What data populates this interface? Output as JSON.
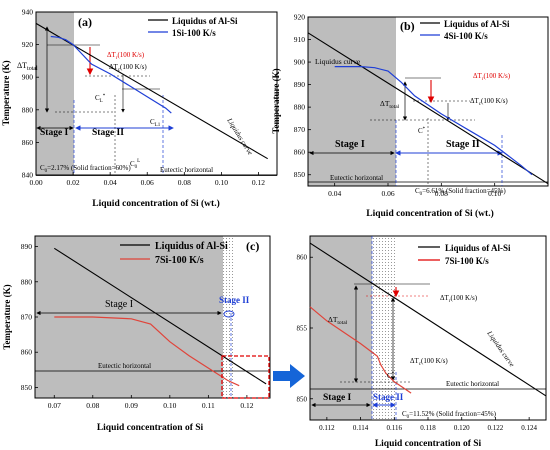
{
  "chart_data": [
    {
      "panel": "(a)",
      "type": "line",
      "xlabel": "Liquid concentration of Si (wt.)",
      "ylabel": "Temperature (K)",
      "xlim": [
        0.0,
        0.13
      ],
      "ylim": [
        840,
        940
      ],
      "xticks": [
        0.0,
        0.02,
        0.04,
        0.06,
        0.08,
        0.1,
        0.12
      ],
      "xtick_labels": [
        "0.00",
        "0.02",
        "0.04",
        "0.06",
        "0.08",
        "0.10",
        "0.12"
      ],
      "yticks": [
        840,
        860,
        880,
        900,
        920,
        940
      ],
      "grid": false,
      "legend_position": "top-right",
      "series": [
        {
          "name": "Liquidus of Al-Si",
          "color": "#000000",
          "x": [
            0.0,
            0.125
          ],
          "y": [
            933,
            850
          ]
        },
        {
          "name": "1Si-100 K/s",
          "color": "#1f3fd6",
          "x": [
            0.008,
            0.012,
            0.016,
            0.02,
            0.025,
            0.03,
            0.04,
            0.05,
            0.06,
            0.07,
            0.073
          ],
          "y": [
            925,
            924.5,
            923,
            920,
            914,
            908,
            902,
            895,
            888,
            881,
            878
          ]
        }
      ],
      "stage_boundary_x": 0.021,
      "eutectic_temperature": 850,
      "annotations": [
        "(a)",
        "ΔT",
        "total",
        "ΔT",
        "r",
        "(100 K/s)",
        "ΔT",
        "c",
        "(100 K/s)",
        "C",
        "L",
        "*",
        "C",
        "L1",
        "C",
        "0",
        "L",
        "Stage I",
        "Stage II",
        "C",
        "0",
        "=2.17% (Solid fraction=60%)",
        "Liquidus curve",
        "Eutectic horizontal"
      ]
    },
    {
      "panel": "(b)",
      "type": "line",
      "xlabel": "Liquid concentration of Si (wt.)",
      "ylabel": "Temperature (K)",
      "xlim": [
        0.03,
        0.12
      ],
      "ylim": [
        845,
        920
      ],
      "xticks": [
        0.04,
        0.06,
        0.08,
        0.1
      ],
      "xtick_labels": [
        "0.04",
        "0.06",
        "0.08",
        "0.10"
      ],
      "yticks": [
        850,
        860,
        870,
        880,
        890,
        900,
        910,
        920
      ],
      "grid": false,
      "legend_position": "top-right",
      "series": [
        {
          "name": "Liquidus of Al-Si",
          "color": "#000000",
          "x": [
            0.03,
            0.12
          ],
          "y": [
            913,
            846
          ]
        },
        {
          "name": "4Si-100 K/s",
          "color": "#1f3fd6",
          "x": [
            0.04,
            0.05,
            0.055,
            0.06,
            0.065,
            0.07,
            0.08,
            0.09,
            0.1,
            0.11,
            0.114
          ],
          "y": [
            898,
            898,
            897.5,
            896,
            891,
            885,
            877,
            870,
            863,
            854,
            850
          ]
        }
      ],
      "stage_boundary_x": 0.066,
      "eutectic_temperature": 849,
      "annotations": [
        "(b)",
        "Liquidus curve",
        "ΔT",
        "r",
        "(100 K/s)",
        "ΔT",
        "total",
        "ΔT",
        "c",
        "(100 K/s)",
        "C",
        "*",
        "Stage I",
        "Stage II",
        "Eutectic horizontal",
        "C",
        "0",
        "=6.61% (Solid fraction=45%)"
      ]
    },
    {
      "panel": "(c)",
      "type": "line",
      "xlabel": "Liquid concentration of Si",
      "ylabel": "Temperature (K)",
      "xlim": [
        0.065,
        0.126
      ],
      "ylim": [
        847,
        893
      ],
      "xticks": [
        0.07,
        0.08,
        0.09,
        0.1,
        0.11,
        0.12
      ],
      "xtick_labels": [
        "0.07",
        "0.08",
        "0.09",
        "0.10",
        "0.11",
        "0.12"
      ],
      "yticks": [
        850,
        860,
        870,
        880,
        890
      ],
      "grid": false,
      "legend_position": "top-right",
      "series": [
        {
          "name": "Liquidus of Al-Si",
          "color": "#000000",
          "x": [
            0.07,
            0.125
          ],
          "y": [
            889.5,
            851
          ]
        },
        {
          "name": "7Si-100 K/s",
          "color": "#e0443a",
          "x": [
            0.07,
            0.08,
            0.09,
            0.095,
            0.1,
            0.105,
            0.11,
            0.115,
            0.118
          ],
          "y": [
            870,
            870,
            869.5,
            868,
            863,
            859,
            855.5,
            852,
            850.5
          ]
        }
      ],
      "stage_boundary_x": 0.116,
      "eutectic_temperature": 850,
      "annotations": [
        "(c)",
        "Stage I",
        "Stage II",
        "Eutectic horizontal"
      ]
    },
    {
      "panel": "inset",
      "type": "line",
      "xlabel": "Liquid concentration of Si",
      "ylabel": "",
      "xlim": [
        0.111,
        0.125
      ],
      "ylim": [
        848.5,
        861.5
      ],
      "xticks": [
        0.112,
        0.114,
        0.116,
        0.118,
        0.12,
        0.122,
        0.124
      ],
      "xtick_labels": [
        "0.112",
        "0.114",
        "0.116",
        "0.118",
        "0.120",
        "0.122",
        "0.124"
      ],
      "yticks": [
        850,
        855,
        860
      ],
      "grid": false,
      "legend_position": "top-right",
      "series": [
        {
          "name": "Liquidus of Al-Si",
          "color": "#000000",
          "x": [
            0.111,
            0.125
          ],
          "y": [
            861,
            850.2
          ]
        },
        {
          "name": "7Si-100 K/s",
          "color": "#e0443a",
          "x": [
            0.111,
            0.112,
            0.113,
            0.114,
            0.115,
            0.1152,
            0.1155,
            0.116,
            0.1165,
            0.117
          ],
          "y": [
            856.5,
            855.5,
            854.7,
            853.9,
            853.0,
            852.4,
            851.8,
            851.2,
            850.8,
            850.4
          ]
        }
      ],
      "stage_boundary_x": 0.1153,
      "eutectic_temperature": 850.3,
      "annotations": [
        "ΔT",
        "total",
        "ΔT",
        "r",
        "(100 K/s)",
        "ΔT",
        "c",
        "(100 K/s)",
        "C",
        "*",
        "Liquidus curve",
        "Eutectic horizontal",
        "Stage I",
        "Stage II",
        "C",
        "0",
        "=11.52% (Solid fraction=45%)"
      ]
    }
  ]
}
